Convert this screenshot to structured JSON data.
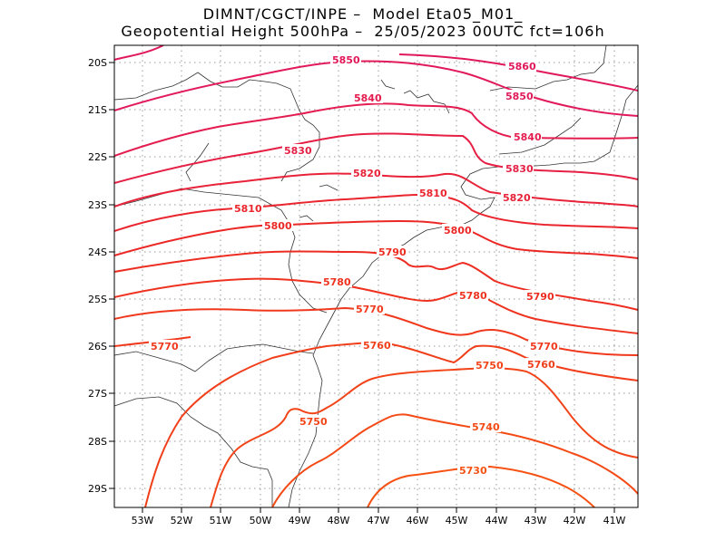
{
  "title": {
    "line1": "DIMNT/CGCT/INPE –  Model Eta05_M01_",
    "line2": "Geopotential Height 500hPa –  25/05/2023 00UTC fct=106h"
  },
  "axes": {
    "lat_labels": [
      "20S",
      "21S",
      "22S",
      "23S",
      "24S",
      "25S",
      "26S",
      "27S",
      "28S",
      "29S"
    ],
    "lon_labels": [
      "53W",
      "52W",
      "51W",
      "50W",
      "49W",
      "48W",
      "47W",
      "46W",
      "45W",
      "44W",
      "43W",
      "42W",
      "41W"
    ]
  },
  "contours": [
    {
      "value": 5860,
      "label": "5860",
      "color": "#e0185a"
    },
    {
      "value": 5850,
      "label": "5850",
      "color": "#e2195a"
    },
    {
      "value": 5840,
      "label": "5840",
      "color": "#e41c4f"
    },
    {
      "value": 5830,
      "label": "5830",
      "color": "#e61f44"
    },
    {
      "value": 5820,
      "label": "5820",
      "color": "#e82238"
    },
    {
      "value": 5810,
      "label": "5810",
      "color": "#ea252e"
    },
    {
      "value": 5800,
      "label": "5800",
      "color": "#ec2826"
    },
    {
      "value": 5790,
      "label": "5790",
      "color": "#ed2d22"
    },
    {
      "value": 5780,
      "label": "5780",
      "color": "#ee321f"
    },
    {
      "value": 5770,
      "label": "5770",
      "color": "#f0381c"
    },
    {
      "value": 5760,
      "label": "5760",
      "color": "#f13e1a"
    },
    {
      "value": 5750,
      "label": "5750",
      "color": "#f24418"
    },
    {
      "value": 5740,
      "label": "5740",
      "color": "#f44a16"
    },
    {
      "value": 5730,
      "label": "5730",
      "color": "#f55214"
    }
  ]
}
